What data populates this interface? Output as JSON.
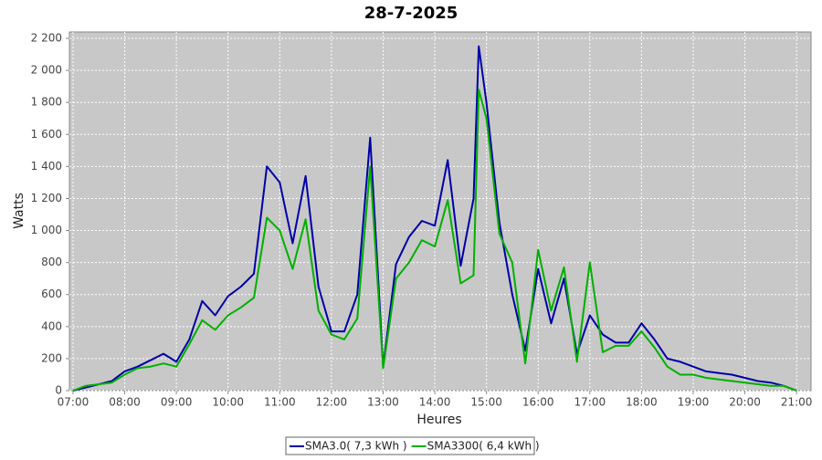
{
  "chart_data": {
    "type": "line",
    "title": "28-7-2025",
    "x_label": "Heures",
    "y_label": "Watts",
    "x": [
      7.0,
      7.25,
      7.5,
      7.75,
      8.0,
      8.25,
      8.5,
      8.75,
      9.0,
      9.25,
      9.5,
      9.75,
      10.0,
      10.25,
      10.5,
      10.75,
      11.0,
      11.25,
      11.5,
      11.75,
      12.0,
      12.25,
      12.5,
      12.75,
      13.0,
      13.25,
      13.5,
      13.75,
      14.0,
      14.25,
      14.5,
      14.75,
      14.85,
      15.0,
      15.25,
      15.5,
      15.75,
      16.0,
      16.25,
      16.5,
      16.75,
      17.0,
      17.25,
      17.5,
      17.75,
      18.0,
      18.25,
      18.5,
      18.75,
      19.0,
      19.25,
      19.5,
      19.75,
      20.0,
      20.25,
      20.5,
      20.75,
      21.0
    ],
    "series": [
      {
        "name": "SMA3.0( 7,3 kWh )",
        "color": "#0000a8",
        "values": [
          0,
          20,
          40,
          60,
          120,
          150,
          190,
          230,
          180,
          320,
          560,
          470,
          590,
          650,
          730,
          1400,
          1300,
          920,
          1340,
          650,
          370,
          370,
          600,
          1580,
          150,
          790,
          960,
          1060,
          1030,
          1440,
          780,
          1200,
          2150,
          1800,
          1050,
          600,
          250,
          760,
          420,
          700,
          230,
          470,
          350,
          300,
          300,
          420,
          320,
          200,
          180,
          150,
          120,
          110,
          100,
          80,
          60,
          50,
          30,
          0
        ]
      },
      {
        "name": "SMA3300( 6,4 kWh )",
        "color": "#00b000",
        "values": [
          0,
          30,
          40,
          50,
          100,
          140,
          150,
          170,
          150,
          290,
          440,
          380,
          470,
          520,
          580,
          1080,
          1000,
          760,
          1070,
          500,
          350,
          320,
          450,
          1400,
          140,
          700,
          800,
          940,
          900,
          1190,
          670,
          720,
          1880,
          1700,
          980,
          800,
          170,
          880,
          500,
          770,
          180,
          800,
          240,
          280,
          280,
          370,
          270,
          150,
          100,
          100,
          80,
          70,
          60,
          50,
          40,
          30,
          30,
          0
        ]
      }
    ],
    "xlim": [
      6.93,
      21.28
    ],
    "ylim": [
      0,
      2240
    ],
    "xticks": [
      {
        "value": 7,
        "label": "07:00"
      },
      {
        "value": 8,
        "label": "08:00"
      },
      {
        "value": 9,
        "label": "09:00"
      },
      {
        "value": 10,
        "label": "10:00"
      },
      {
        "value": 11,
        "label": "11:00"
      },
      {
        "value": 12,
        "label": "12:00"
      },
      {
        "value": 13,
        "label": "13:00"
      },
      {
        "value": 14,
        "label": "14:00"
      },
      {
        "value": 15,
        "label": "15:00"
      },
      {
        "value": 16,
        "label": "16:00"
      },
      {
        "value": 17,
        "label": "17:00"
      },
      {
        "value": 18,
        "label": "18:00"
      },
      {
        "value": 19,
        "label": "19:00"
      },
      {
        "value": 20,
        "label": "20:00"
      },
      {
        "value": 21,
        "label": "21:00"
      }
    ],
    "yticks": [
      0,
      200,
      400,
      600,
      800,
      {
        "value": 1000,
        "label": "1 000"
      },
      {
        "value": 1200,
        "label": "1 200"
      },
      {
        "value": 1400,
        "label": "1 400"
      },
      {
        "value": 1600,
        "label": "1 600"
      },
      {
        "value": 1800,
        "label": "1 800"
      },
      {
        "value": 2000,
        "label": "2 000"
      },
      {
        "value": 2200,
        "label": "2 200"
      }
    ],
    "grid": true
  }
}
